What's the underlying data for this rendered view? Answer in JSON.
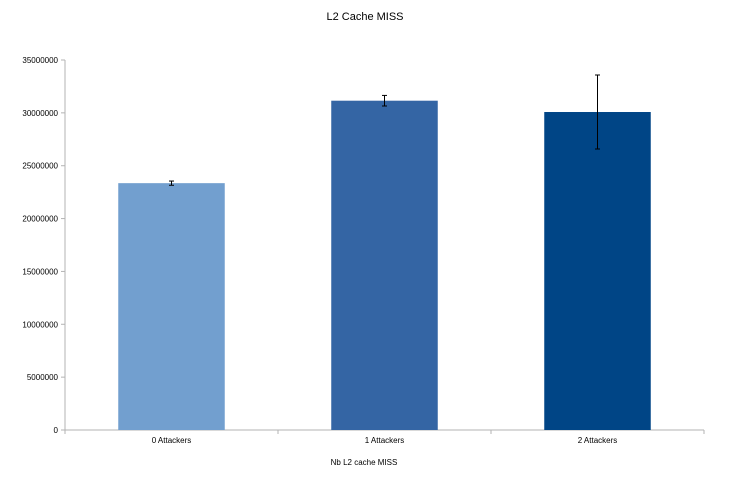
{
  "chart_data": {
    "type": "bar",
    "title": "L2 Cache MISS",
    "xlabel": "Nb L2 cache MISS",
    "ylabel": "",
    "categories": [
      "0 Attackers",
      "1 Attackers",
      "2 Attackers"
    ],
    "series": [
      {
        "values": [
          23350000,
          31150000,
          30080000
        ],
        "error": [
          200000,
          500000,
          3500000
        ],
        "colors": [
          "#729fcf",
          "#3465a4",
          "#004586"
        ]
      }
    ],
    "ylim": [
      0,
      35000000
    ],
    "yticks": [
      0,
      5000000,
      10000000,
      15000000,
      20000000,
      25000000,
      30000000,
      35000000
    ],
    "ytick_labels": [
      "0",
      "5000000",
      "10000000",
      "15000000",
      "20000000",
      "25000000",
      "30000000",
      "35000000"
    ],
    "grid": false,
    "legend": "none",
    "colors": {
      "axis": "#b3b3b3",
      "errorbar": "#000000"
    }
  }
}
